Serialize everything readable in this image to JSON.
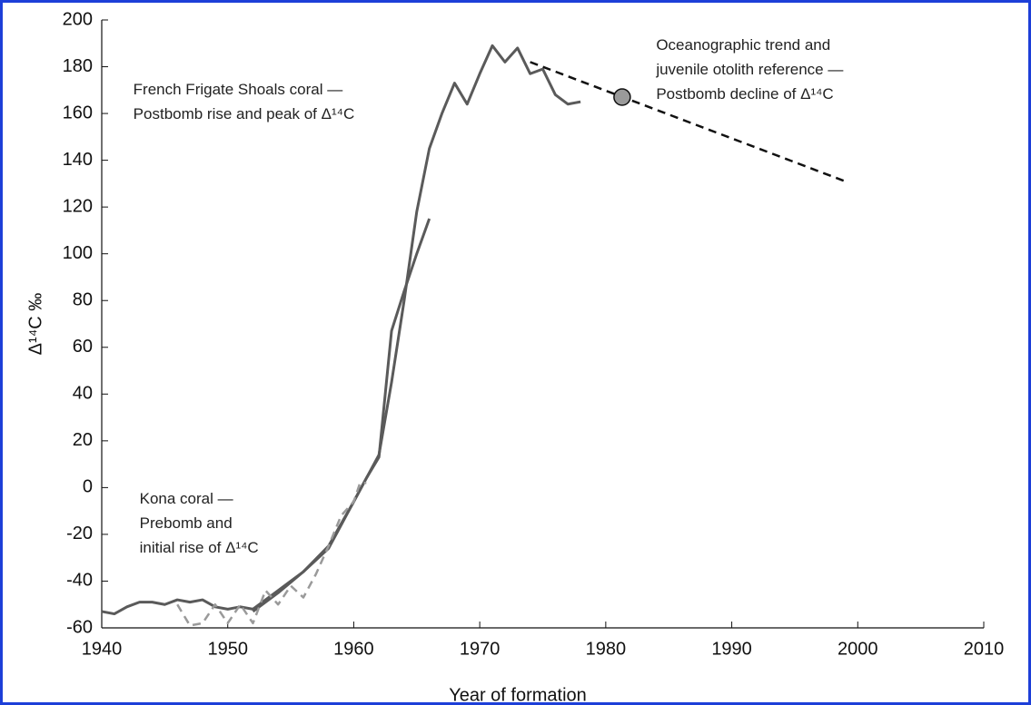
{
  "chart_data": {
    "type": "line",
    "xlabel": "Year of formation",
    "ylabel": "Δ¹⁴C ‰",
    "xlim": [
      1940,
      2010
    ],
    "xticks": [
      1940,
      1950,
      1960,
      1970,
      1980,
      1990,
      2000,
      2010
    ],
    "ylim": [
      -60,
      200
    ],
    "yticks": [
      -60,
      -40,
      -20,
      0,
      20,
      40,
      60,
      80,
      100,
      120,
      140,
      160,
      180,
      200
    ],
    "annotations": [
      {
        "lines": [
          "French Frigate Shoals coral —",
          "Postbomb rise and peak of Δ¹⁴C"
        ],
        "x": 1942.5,
        "y": 170
      },
      {
        "lines": [
          "Kona coral —",
          "Prebomb and",
          "initial rise of Δ¹⁴C"
        ],
        "x": 1943,
        "y": -5
      },
      {
        "lines": [
          "Oceanographic trend and",
          "juvenile otolith reference —",
          "Postbomb decline of Δ¹⁴C"
        ],
        "x": 1984,
        "y": 189
      }
    ],
    "series": [
      {
        "color": "#5a5a5a",
        "dash": false,
        "x": [
          1940,
          1941,
          1942,
          1943,
          1944,
          1945,
          1946,
          1947,
          1948,
          1949,
          1950,
          1951,
          1952,
          1953,
          1954,
          1955,
          1956,
          1957,
          1958,
          1959,
          1960,
          1961,
          1962,
          1963,
          1964,
          1965,
          1966
        ],
        "values": [
          -53,
          -54,
          -51,
          -49,
          -49,
          -50,
          -48,
          -49,
          -48,
          -51,
          -52,
          -51,
          -52,
          -48,
          -44,
          -40,
          -36,
          -31,
          -26,
          -16,
          -6,
          4,
          13,
          67,
          84,
          100,
          115
        ]
      },
      {
        "color": "#5a5a5a",
        "dash": false,
        "x": [
          1952,
          1954,
          1956,
          1958,
          1960,
          1962,
          1963,
          1964,
          1965,
          1966,
          1967,
          1968,
          1969,
          1970,
          1971,
          1972,
          1973,
          1974,
          1975,
          1976,
          1977,
          1978
        ],
        "values": [
          -53,
          -45,
          -36,
          -25,
          -6,
          14,
          45,
          80,
          118,
          145,
          160,
          173,
          164,
          177,
          189,
          182,
          188,
          177,
          179,
          168,
          164,
          165
        ]
      },
      {
        "color": "#9a9a9a",
        "dash": true,
        "x": [
          1946,
          1947,
          1948,
          1949,
          1950,
          1951,
          1952,
          1953,
          1954,
          1955,
          1956,
          1957,
          1958,
          1959,
          1960,
          1960.5,
          1961
        ],
        "values": [
          -50,
          -59,
          -58,
          -50,
          -58,
          -50,
          -58,
          -44,
          -50,
          -42,
          -47,
          -37,
          -25,
          -12,
          -6,
          2,
          2
        ]
      },
      {
        "color": "#111111",
        "dash": true,
        "x": [
          1974,
          1999
        ],
        "values": [
          182,
          131
        ]
      }
    ],
    "points": {
      "color": "#9a9a9a",
      "x": [
        1981.3
      ],
      "values": [
        167
      ]
    }
  }
}
